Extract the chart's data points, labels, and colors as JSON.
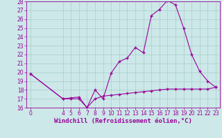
{
  "xlabel": "Windchill (Refroidissement éolien,°C)",
  "line1_x": [
    0,
    4,
    5,
    6,
    7,
    8,
    9,
    10,
    11,
    12,
    13,
    14,
    15,
    16,
    17,
    18,
    19,
    20,
    21,
    22,
    23
  ],
  "line1_y": [
    19.8,
    17.0,
    17.0,
    17.0,
    16.0,
    18.0,
    17.0,
    19.9,
    21.2,
    21.6,
    22.8,
    22.2,
    26.4,
    27.1,
    28.1,
    27.6,
    25.0,
    22.0,
    20.1,
    19.0,
    18.3
  ],
  "line2_x": [
    0,
    4,
    5,
    6,
    7,
    8,
    9,
    10,
    11,
    12,
    13,
    14,
    15,
    16,
    17,
    18,
    19,
    20,
    21,
    22,
    23
  ],
  "line2_y": [
    19.8,
    17.0,
    17.1,
    17.2,
    16.0,
    17.0,
    17.3,
    17.4,
    17.5,
    17.6,
    17.7,
    17.8,
    17.9,
    18.0,
    18.1,
    18.1,
    18.1,
    18.1,
    18.1,
    18.1,
    18.3
  ],
  "line_color": "#990099",
  "bg_color": "#cce8e8",
  "grid_color": "#aacccc",
  "ylim": [
    16,
    28
  ],
  "yticks": [
    16,
    17,
    18,
    19,
    20,
    21,
    22,
    23,
    24,
    25,
    26,
    27,
    28
  ],
  "xticks": [
    0,
    4,
    5,
    6,
    7,
    8,
    9,
    10,
    11,
    12,
    13,
    14,
    15,
    16,
    17,
    18,
    19,
    20,
    21,
    22,
    23
  ],
  "xlim": [
    -0.5,
    23.5
  ],
  "xlabel_fontsize": 6.5,
  "tick_fontsize": 5.5,
  "marker": "+",
  "markersize": 3.5,
  "linewidth": 0.8
}
